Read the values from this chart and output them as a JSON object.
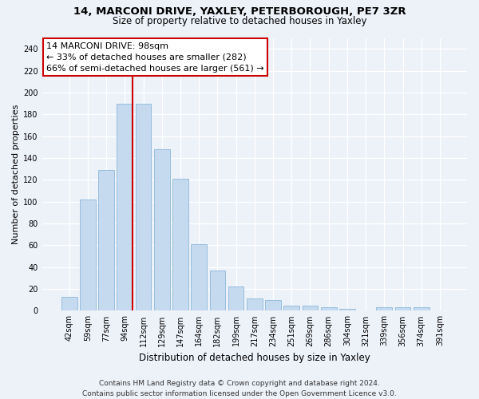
{
  "title_line1": "14, MARCONI DRIVE, YAXLEY, PETERBOROUGH, PE7 3ZR",
  "title_line2": "Size of property relative to detached houses in Yaxley",
  "xlabel": "Distribution of detached houses by size in Yaxley",
  "ylabel": "Number of detached properties",
  "categories": [
    "42sqm",
    "59sqm",
    "77sqm",
    "94sqm",
    "112sqm",
    "129sqm",
    "147sqm",
    "164sqm",
    "182sqm",
    "199sqm",
    "217sqm",
    "234sqm",
    "251sqm",
    "269sqm",
    "286sqm",
    "304sqm",
    "321sqm",
    "339sqm",
    "356sqm",
    "374sqm",
    "391sqm"
  ],
  "values": [
    13,
    102,
    129,
    190,
    190,
    148,
    121,
    61,
    37,
    22,
    11,
    10,
    5,
    5,
    3,
    2,
    0,
    3,
    3,
    3,
    0
  ],
  "bar_color": "#c5d9ef",
  "bar_edge_color": "#7bafd4",
  "vline_color": "#cc0000",
  "vline_x": 3.43,
  "annotation_text": "14 MARCONI DRIVE: 98sqm\n← 33% of detached houses are smaller (282)\n66% of semi-detached houses are larger (561) →",
  "annotation_box_color": "#ffffff",
  "annotation_box_edge_color": "#cc0000",
  "ylim": [
    0,
    250
  ],
  "yticks": [
    0,
    20,
    40,
    60,
    80,
    100,
    120,
    140,
    160,
    180,
    200,
    220,
    240
  ],
  "footer_line1": "Contains HM Land Registry data © Crown copyright and database right 2024.",
  "footer_line2": "Contains public sector information licensed under the Open Government Licence v3.0.",
  "bg_color": "#edf2f9",
  "title_fontsize": 9.5,
  "subtitle_fontsize": 8.5,
  "ylabel_fontsize": 8.0,
  "xlabel_fontsize": 8.5,
  "tick_fontsize": 7.0,
  "annot_fontsize": 8.0,
  "footer_fontsize": 6.5
}
